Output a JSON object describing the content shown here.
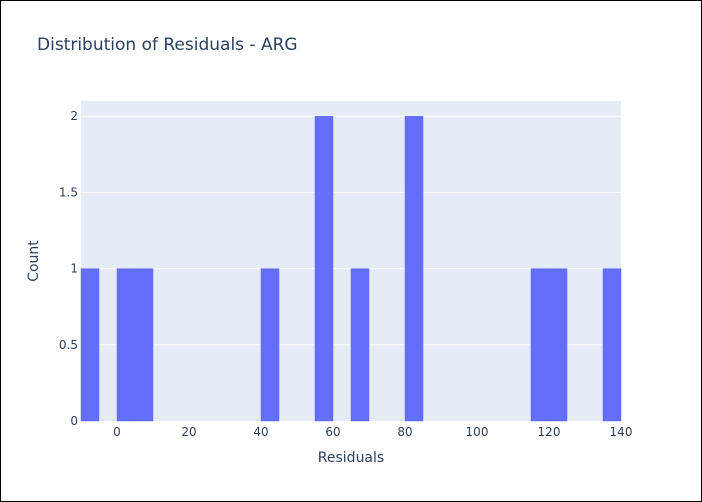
{
  "chart_data": {
    "type": "bar",
    "title": "Distribution of Residuals - ARG",
    "xlabel": "Residuals",
    "ylabel": "Count",
    "xlim": [
      -10,
      140
    ],
    "ylim": [
      0,
      2.1
    ],
    "x_ticks": [
      0,
      20,
      40,
      60,
      80,
      100,
      120,
      140
    ],
    "y_ticks": [
      0,
      0.5,
      1,
      1.5,
      2
    ],
    "y_tick_labels": [
      "0",
      "0.5",
      "1",
      "1.5",
      "2"
    ],
    "bin_width": 5,
    "bins": [
      {
        "start": -10,
        "count": 1
      },
      {
        "start": 0,
        "count": 1
      },
      {
        "start": 5,
        "count": 1
      },
      {
        "start": 40,
        "count": 1
      },
      {
        "start": 55,
        "count": 2
      },
      {
        "start": 65,
        "count": 1
      },
      {
        "start": 80,
        "count": 2
      },
      {
        "start": 115,
        "count": 1
      },
      {
        "start": 120,
        "count": 1
      },
      {
        "start": 135,
        "count": 1
      }
    ],
    "grid": true,
    "colors": {
      "bar": "#636efa",
      "plot_bg": "#e5ecf6",
      "grid": "#ffffff",
      "text": "#2a3f5f"
    }
  }
}
